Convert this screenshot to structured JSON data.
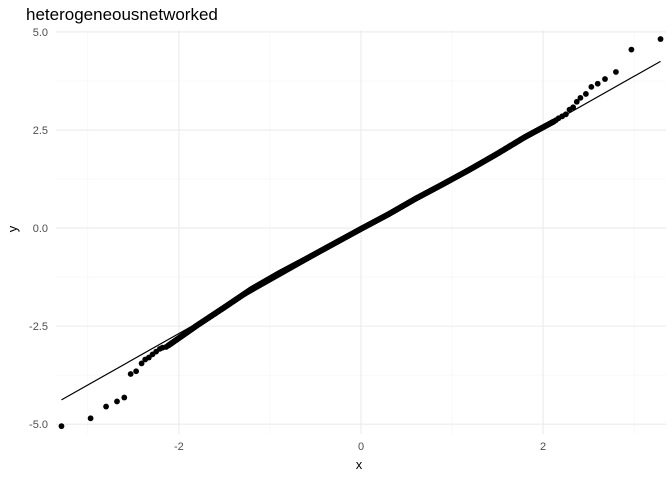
{
  "chart_data": {
    "type": "scatter",
    "title": "heterogeneousnetworked",
    "xlabel": "x",
    "ylabel": "y",
    "xlim": [
      -3.35,
      3.35
    ],
    "ylim": [
      -5.25,
      5.05
    ],
    "x_ticks": [
      -2,
      0,
      2
    ],
    "x_tick_labels": [
      "-2",
      "0",
      "2"
    ],
    "y_ticks": [
      -5,
      -2.5,
      0,
      2.5,
      5
    ],
    "y_tick_labels": [
      "-5.0",
      "-2.5",
      "0.0",
      "2.5",
      "5.0"
    ],
    "grid": true,
    "legend": "none",
    "reference_line": {
      "x": [
        -3.29,
        3.29
      ],
      "y": [
        -4.38,
        4.25
      ]
    },
    "tail_points": {
      "x": [
        -3.29,
        -2.97,
        -2.8,
        -2.68,
        -2.6,
        -2.53,
        -2.47,
        -2.41,
        -2.37,
        -2.33,
        -2.29,
        -2.25,
        -2.21,
        -2.18,
        -2.14,
        2.14,
        2.17,
        2.21,
        2.25,
        2.29,
        2.33,
        2.37,
        2.41,
        2.47,
        2.53,
        2.6,
        2.68,
        2.8,
        2.97,
        3.29
      ],
      "y": [
        -5.05,
        -4.85,
        -4.55,
        -4.42,
        -4.32,
        -3.72,
        -3.65,
        -3.45,
        -3.35,
        -3.3,
        -3.22,
        -3.15,
        -3.08,
        -3.05,
        -3.03,
        2.75,
        2.8,
        2.85,
        2.9,
        3.02,
        3.08,
        3.22,
        3.32,
        3.42,
        3.6,
        3.68,
        3.8,
        3.98,
        4.55,
        4.82
      ]
    },
    "body": {
      "count": 970,
      "x_range": [
        -2.12,
        2.12
      ],
      "quantile_curve": {
        "x": [
          -2.12,
          -1.8,
          -1.5,
          -1.2,
          -0.9,
          -0.6,
          -0.3,
          0,
          0.3,
          0.6,
          0.9,
          1.2,
          1.5,
          1.8,
          2.12
        ],
        "y": [
          -3.0,
          -2.48,
          -2.02,
          -1.55,
          -1.15,
          -0.78,
          -0.4,
          -0.02,
          0.35,
          0.75,
          1.12,
          1.5,
          1.9,
          2.32,
          2.72
        ]
      }
    }
  }
}
